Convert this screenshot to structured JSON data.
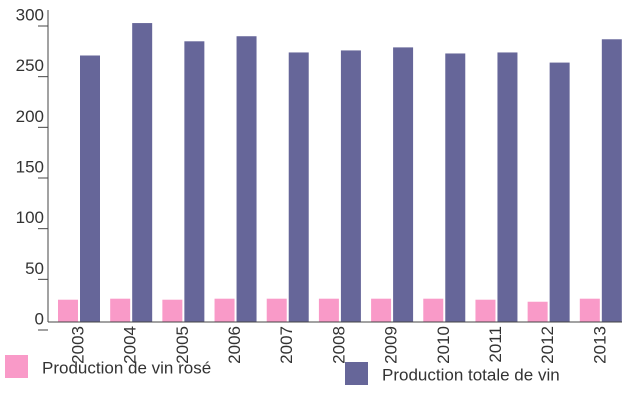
{
  "chart_data": {
    "type": "bar",
    "categories": [
      "2003",
      "2004",
      "2005",
      "2006",
      "2007",
      "2008",
      "2009",
      "2010",
      "2011",
      "2012",
      "2013"
    ],
    "series": [
      {
        "name": "Production de vin rosé",
        "color": "#f99ac8",
        "values": [
          22,
          23,
          22,
          23,
          23,
          23,
          23,
          23,
          22,
          20,
          23
        ]
      },
      {
        "name": "Production totale de vin",
        "color": "#666699",
        "values": [
          263,
          295,
          277,
          282,
          266,
          268,
          271,
          265,
          266,
          256,
          279
        ]
      }
    ],
    "ylim": [
      0,
      300
    ],
    "yticks": [
      0,
      50,
      100,
      150,
      200,
      250,
      300
    ],
    "grid": false,
    "legend": "bottom"
  }
}
